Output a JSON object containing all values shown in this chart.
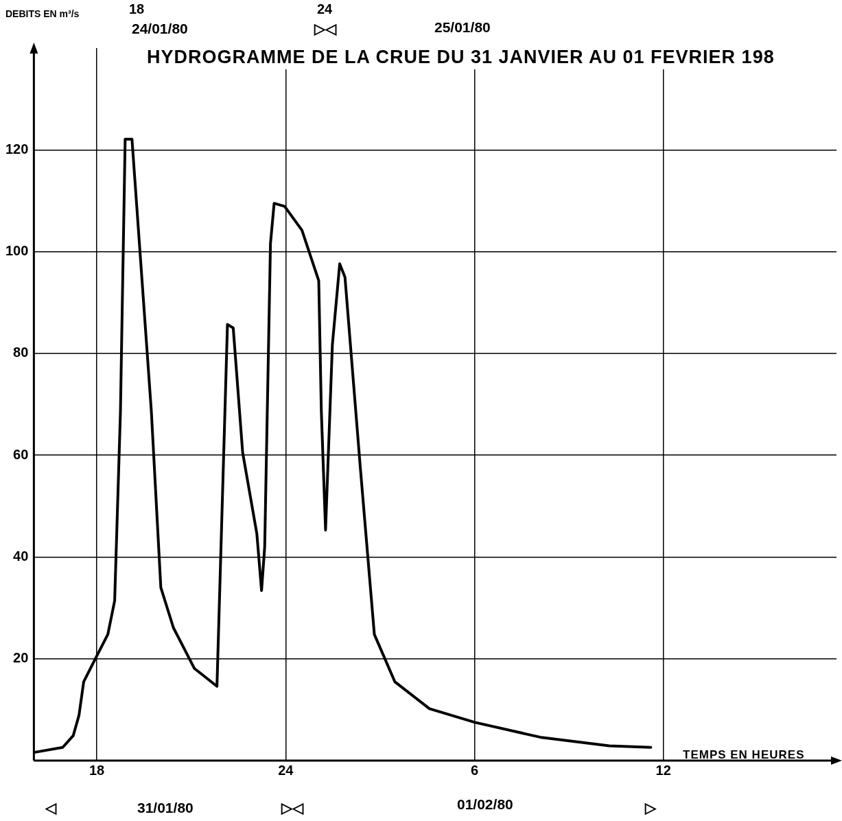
{
  "chart_data": {
    "type": "line",
    "title": "HYDROGRAMME DE LA CRUE DU 31 JANVIER AU 01 FEVRIER 198",
    "xlabel": "TEMPS EN HEURES",
    "ylabel": "DEBITS EN m³/s",
    "annotations": [
      "18",
      "24/01/80",
      "24",
      "▷◁",
      "25/01/80",
      "◁",
      "31/01/80",
      "▷◁",
      "01/02/80",
      "▷"
    ],
    "x": [
      "--01-31T16:00",
      "--01-31T16:55",
      "--01-31T17:15",
      "--01-31T17:26",
      "--01-31T17:35",
      "--01-31T18:01",
      "--01-31T18:21",
      "--01-31T18:34",
      "--01-31T18:45",
      "--01-31T18:54",
      "--01-31T19:07",
      "--01-31T19:44",
      "--01-31T20:02",
      "--01-31T20:26",
      "--01-31T21:06",
      "--01-31T21:49",
      "--01-31T22:09",
      "--01-31T22:20",
      "--01-31T22:38",
      "--01-31T23:05",
      "--01-31T23:14",
      "--01-31T23:20",
      "--01-31T23:31",
      "--01-31T23:38",
      "--01-31T23:58",
      "--02-01T00:31",
      "--02-01T01:03",
      "--02-01T01:08",
      "--02-01T01:16",
      "--02-01T01:29",
      "--02-01T01:43",
      "--02-01T01:53",
      "--02-01T02:22",
      "--02-01T02:49",
      "--02-01T03:28",
      "--02-01T04:34",
      "--02-01T06:01",
      "--02-01T08:05",
      "--02-01T10:17",
      "--02-01T11:36"
    ],
    "series": [
      {
        "color": "#000000",
        "values": [
          1.6,
          2.6,
          4.9,
          8.9,
          15.5,
          20.8,
          24.8,
          31.4,
          68.5,
          122.1,
          122.1,
          68.5,
          34.0,
          26.1,
          18.1,
          14.6,
          85.7,
          85.0,
          60.5,
          44.6,
          33.4,
          42.0,
          101.6,
          109.5,
          108.9,
          104.2,
          94.3,
          68.5,
          45.3,
          81.7,
          97.6,
          95.0,
          57.9,
          24.8,
          15.5,
          10.2,
          7.5,
          4.6,
          2.9,
          2.6
        ]
      }
    ],
    "xlim": [
      "--01-31T16:00",
      "--02-01T17:30"
    ],
    "xticks": [
      {
        "value": "--01-31T18:00",
        "label": "18"
      },
      {
        "value": "--02-01T00:00",
        "label": "24"
      },
      {
        "value": "--02-01T06:00",
        "label": "6"
      },
      {
        "value": "--02-01T12:00",
        "label": "12"
      }
    ],
    "ylim": [
      0,
      140
    ],
    "yticks": [
      20,
      40,
      60,
      80,
      100,
      120
    ],
    "grid": true,
    "legend": false,
    "marker": "none",
    "line_style": "solid"
  }
}
